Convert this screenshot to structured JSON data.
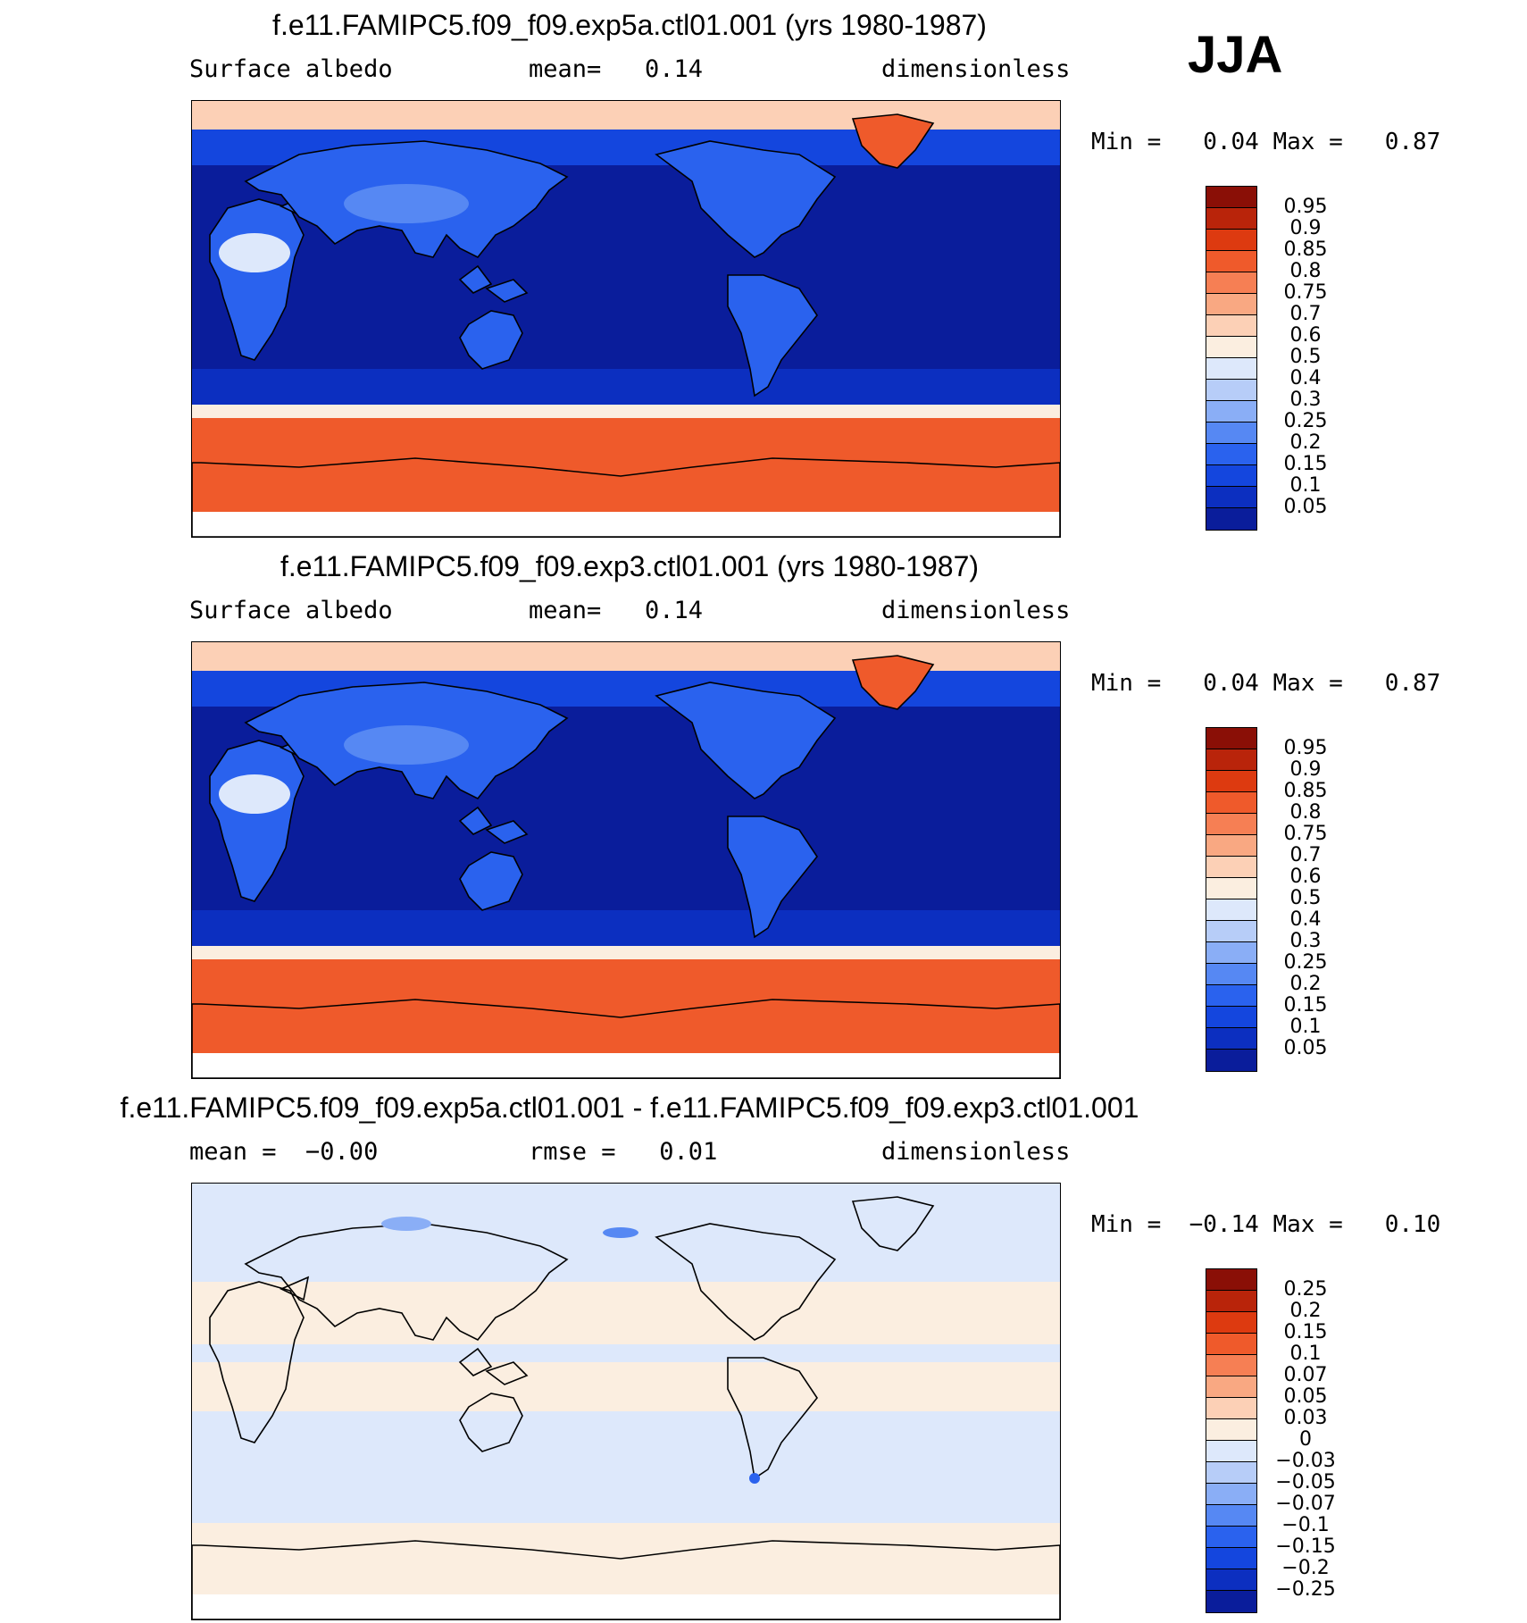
{
  "season": "JJA",
  "colors": {
    "absolute_scale": [
      "#08066e",
      "#0a1d9b",
      "#0c2fc0",
      "#1446de",
      "#2a62ee",
      "#5688f3",
      "#8aaef6",
      "#b7cdf8",
      "#dde8fb",
      "#fbeee0",
      "#fcd0b6",
      "#f9a882",
      "#f67f54",
      "#ef5a2b",
      "#dd3a10",
      "#b9240a",
      "#8a0f06"
    ],
    "difference_scale": [
      "#08066e",
      "#0a1d9b",
      "#0c2fc0",
      "#1446de",
      "#2a62ee",
      "#5688f3",
      "#8aaef6",
      "#b7cdf8",
      "#dde8fb",
      "#fbeee0",
      "#fcd0b6",
      "#f9a882",
      "#f67f54",
      "#ef5a2b",
      "#dd3a10",
      "#b9240a",
      "#8a0f06"
    ]
  },
  "panels": [
    {
      "title": "f.e11.FAMIPC5.f09_f09.exp5a.ctl01.001 (yrs 1980-1987)",
      "left_text": "Surface albedo",
      "center_text": "mean=   0.14",
      "right_text": "dimensionless",
      "minmax": "Min =   0.04 Max =   0.87",
      "colorbar_labels": [
        "0.95",
        "0.9",
        "0.85",
        "0.8",
        "0.75",
        "0.7",
        "0.6",
        "0.5",
        "0.4",
        "0.3",
        "0.25",
        "0.2",
        "0.15",
        "0.1",
        "0.05"
      ],
      "map_kind": "absolute"
    },
    {
      "title": "f.e11.FAMIPC5.f09_f09.exp3.ctl01.001 (yrs 1980-1987)",
      "left_text": "Surface albedo",
      "center_text": "mean=   0.14",
      "right_text": "dimensionless",
      "minmax": "Min =   0.04 Max =   0.87",
      "colorbar_labels": [
        "0.95",
        "0.9",
        "0.85",
        "0.8",
        "0.75",
        "0.7",
        "0.6",
        "0.5",
        "0.4",
        "0.3",
        "0.25",
        "0.2",
        "0.15",
        "0.1",
        "0.05"
      ],
      "map_kind": "absolute"
    },
    {
      "title": "f.e11.FAMIPC5.f09_f09.exp5a.ctl01.001 - f.e11.FAMIPC5.f09_f09.exp3.ctl01.001",
      "left_text": "mean =  −0.00",
      "center_text": "rmse =   0.01",
      "right_text": "dimensionless",
      "minmax": "Min =  −0.14 Max =   0.10",
      "colorbar_labels": [
        "0.25",
        "0.2",
        "0.15",
        "0.1",
        "0.07",
        "0.05",
        "0.03",
        "0",
        "−0.03",
        "−0.05",
        "−0.07",
        "−0.1",
        "−0.15",
        "−0.2",
        "−0.25"
      ],
      "map_kind": "difference"
    }
  ]
}
